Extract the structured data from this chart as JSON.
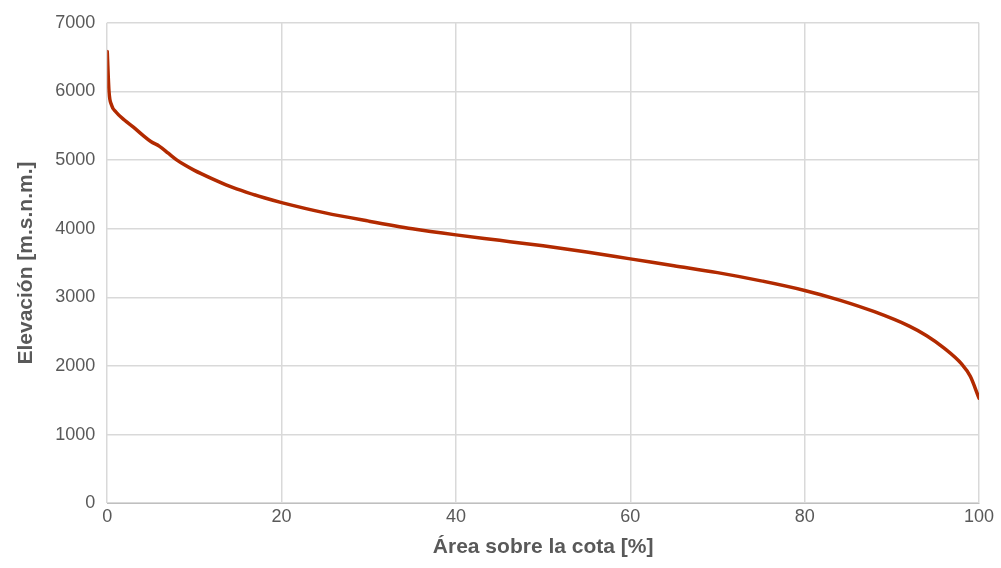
{
  "chart_data": {
    "type": "line",
    "xlabel": "Área sobre la cota [%]",
    "ylabel": "Elevación [m.s.n.m.]",
    "xlim": [
      0,
      100
    ],
    "xticks": [
      0,
      20,
      40,
      60,
      80,
      100
    ],
    "ylim": [
      0,
      7000
    ],
    "yticks": [
      0,
      1000,
      2000,
      3000,
      4000,
      5000,
      6000,
      7000
    ],
    "grid": true,
    "marker": "none",
    "line_style": "solid",
    "legend": false,
    "series": [
      {
        "color": "#b22a00",
        "x": [
          0,
          0.2,
          0.5,
          1,
          2,
          3,
          4,
          5,
          6,
          7,
          8,
          9,
          10,
          12,
          14,
          16,
          18,
          20,
          25,
          30,
          35,
          40,
          45,
          50,
          55,
          60,
          65,
          70,
          75,
          80,
          84,
          88,
          92,
          94,
          96,
          98,
          99,
          100
        ],
        "values": [
          6580,
          6000,
          5800,
          5700,
          5580,
          5480,
          5370,
          5270,
          5200,
          5100,
          5000,
          4920,
          4850,
          4730,
          4620,
          4530,
          4450,
          4380,
          4230,
          4110,
          4000,
          3910,
          3830,
          3750,
          3660,
          3560,
          3460,
          3360,
          3240,
          3100,
          2960,
          2790,
          2580,
          2440,
          2260,
          2030,
          1850,
          1530
        ]
      }
    ]
  }
}
